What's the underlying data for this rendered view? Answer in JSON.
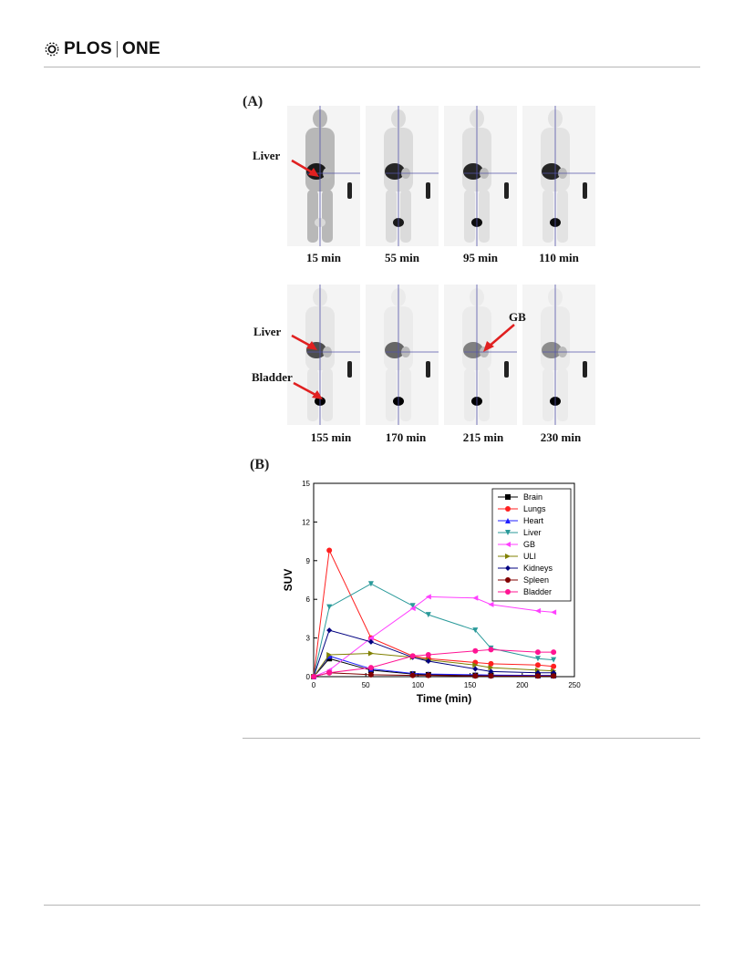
{
  "header": {
    "journal_left": "PLOS",
    "journal_right": "ONE"
  },
  "figure": {
    "panel_a_label": "(A)",
    "panel_b_label": "(B)",
    "row1_times": [
      "15 min",
      "55 min",
      "95 min",
      "110 min"
    ],
    "row2_times": [
      "155 min",
      "170 min",
      "215 min",
      "230 min"
    ],
    "annotations": {
      "liver_row1": "Liver",
      "liver_row2": "Liver",
      "bladder": "Bladder",
      "gb": "GB"
    }
  },
  "chart_data": {
    "type": "line",
    "xlabel": "Time (min)",
    "ylabel": "SUV",
    "xlim": [
      0,
      250
    ],
    "ylim": [
      0,
      15
    ],
    "xticks": [
      0,
      50,
      100,
      150,
      200,
      250
    ],
    "yticks": [
      0,
      3,
      6,
      9,
      12,
      15
    ],
    "legend_position": "top-right",
    "series": [
      {
        "name": "Brain",
        "color": "#000000",
        "marker": "square",
        "x": [
          0,
          15,
          55,
          95,
          110,
          155,
          170,
          215,
          230
        ],
        "y": [
          0,
          1.4,
          0.5,
          0.2,
          0.15,
          0.1,
          0.1,
          0.08,
          0.08
        ]
      },
      {
        "name": "Lungs",
        "color": "#ff2020",
        "marker": "circle",
        "x": [
          0,
          15,
          55,
          95,
          110,
          155,
          170,
          215,
          230
        ],
        "y": [
          0,
          9.8,
          3.0,
          1.6,
          1.4,
          1.1,
          1.0,
          0.9,
          0.8
        ]
      },
      {
        "name": "Heart",
        "color": "#2020ff",
        "marker": "triangle-up",
        "x": [
          0,
          15,
          55,
          95,
          110,
          155,
          170,
          215,
          230
        ],
        "y": [
          0,
          1.6,
          0.6,
          0.25,
          0.2,
          0.15,
          0.12,
          0.1,
          0.1
        ]
      },
      {
        "name": "Liver",
        "color": "#2a9a9a",
        "marker": "triangle-down",
        "x": [
          0,
          15,
          55,
          95,
          110,
          155,
          170,
          215,
          230
        ],
        "y": [
          0,
          5.4,
          7.2,
          5.5,
          4.8,
          3.6,
          2.2,
          1.4,
          1.3
        ]
      },
      {
        "name": "GB",
        "color": "#ff40ff",
        "marker": "triangle-left",
        "x": [
          0,
          15,
          55,
          95,
          110,
          155,
          170,
          215,
          230
        ],
        "y": [
          0,
          0.5,
          3.0,
          5.3,
          6.2,
          6.1,
          5.6,
          5.1,
          5.0
        ]
      },
      {
        "name": "ULI",
        "color": "#808000",
        "marker": "triangle-right",
        "x": [
          0,
          15,
          55,
          95,
          110,
          155,
          170,
          215,
          230
        ],
        "y": [
          0,
          1.7,
          1.8,
          1.5,
          1.3,
          0.9,
          0.7,
          0.5,
          0.45
        ]
      },
      {
        "name": "Kidneys",
        "color": "#000080",
        "marker": "diamond",
        "x": [
          0,
          15,
          55,
          95,
          110,
          155,
          170,
          215,
          230
        ],
        "y": [
          0,
          3.6,
          2.7,
          1.5,
          1.2,
          0.6,
          0.4,
          0.3,
          0.3
        ]
      },
      {
        "name": "Spleen",
        "color": "#800000",
        "marker": "circle",
        "x": [
          0,
          15,
          55,
          95,
          110,
          155,
          170,
          215,
          230
        ],
        "y": [
          0,
          0.3,
          0.15,
          0.1,
          0.1,
          0.05,
          0.05,
          0.05,
          0.05
        ]
      },
      {
        "name": "Bladder",
        "color": "#ff1493",
        "marker": "circle",
        "x": [
          0,
          15,
          55,
          95,
          110,
          155,
          170,
          215,
          230
        ],
        "y": [
          0,
          0.3,
          0.7,
          1.6,
          1.7,
          2.0,
          2.1,
          1.9,
          1.9
        ]
      }
    ]
  }
}
